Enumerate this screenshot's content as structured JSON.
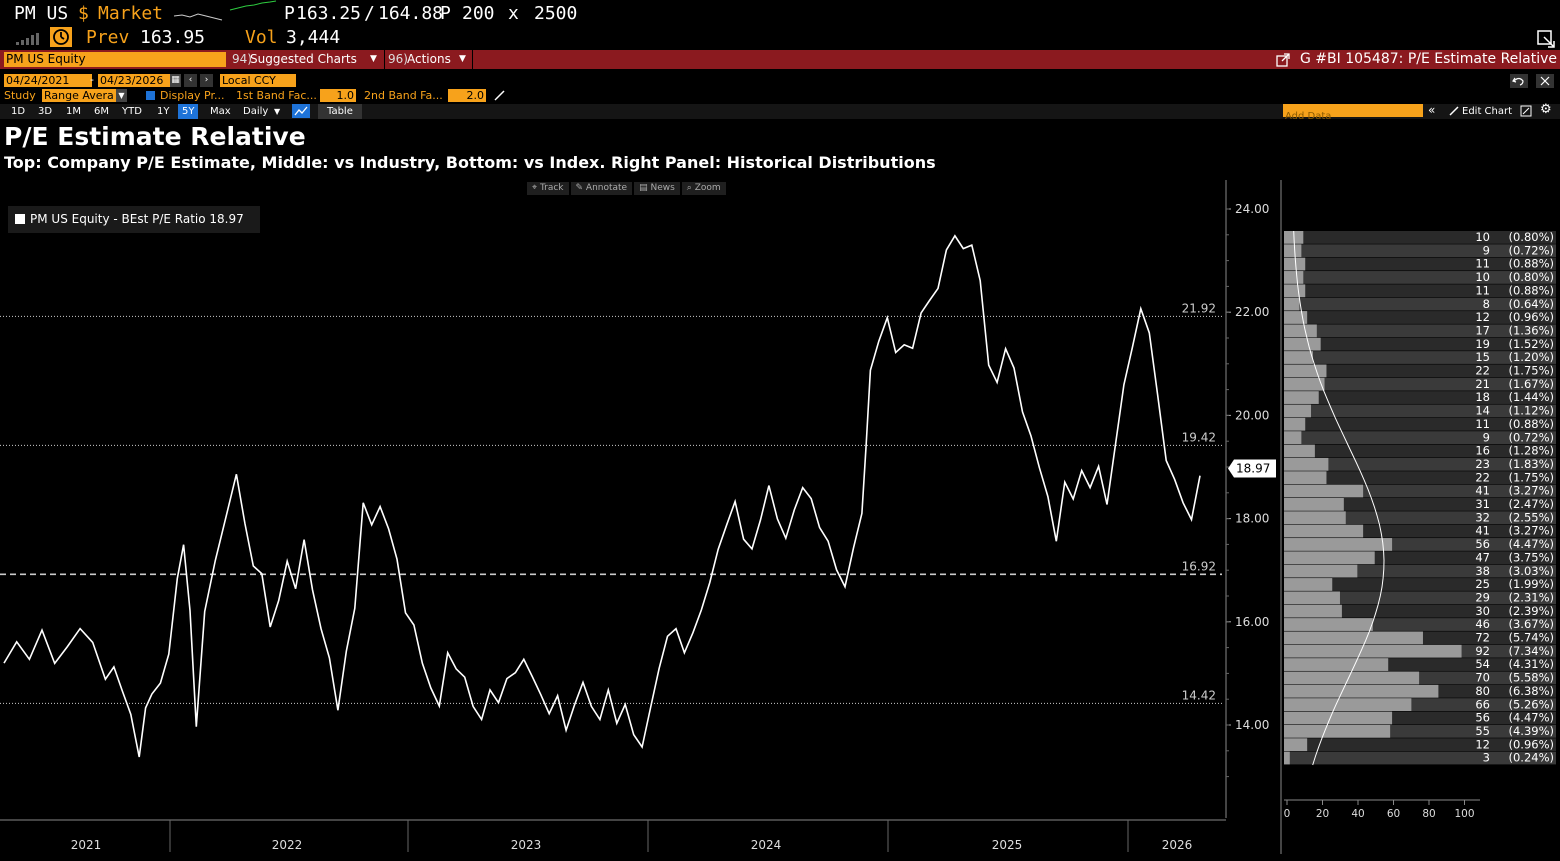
{
  "header": {
    "ticker": "PM US",
    "currency_symbol": "$",
    "market_label": "Market",
    "price_prefix": "P",
    "bid": "163.25",
    "slash": "/",
    "ask": "164.88",
    "ask_suffix": "P",
    "bid_size": "200",
    "x_label": "x",
    "ask_size": "2500",
    "prev_label": "Prev",
    "prev_value": "163.95",
    "vol_label": "Vol",
    "vol_value": "3,444"
  },
  "redbar": {
    "security": "PM US Equity",
    "suggested": "Suggested Charts",
    "actions": "Actions",
    "chart_id": "G #BI 105487: P/E Estimate Relative"
  },
  "controls": {
    "start_date": "04/24/2021",
    "dash": "-",
    "end_date": "04/23/2026",
    "currency": "Local CCY",
    "study_label": "Study",
    "study_value": "Range Avera",
    "display_label": "Display Pr...",
    "band1_label": "1st Band Fac...",
    "band1_value": "1.0",
    "band2_label": "2nd Band Fa...",
    "band2_value": "2.0",
    "ranges": [
      "1D",
      "3D",
      "1M",
      "6M",
      "YTD",
      "1Y",
      "5Y",
      "Max"
    ],
    "active_range": "5Y",
    "freq": "Daily",
    "table_label": "Table",
    "add_data_placeholder": "Add Data",
    "edit_chart": "Edit Chart"
  },
  "title": "P/E Estimate Relative",
  "subtitle": "Top: Company P/E Estimate, Middle: vs Industry, Bottom: vs Index. Right Panel: Historical Distributions",
  "tools": [
    "Track",
    "Annotate",
    "News",
    "Zoom"
  ],
  "legend_text": "PM US Equity - BEst P/E Ratio 18.97",
  "colors": {
    "amber": "#f7a21b",
    "red_bar": "#8b1a1f",
    "line": "#ffffff",
    "hist_light": "#999999",
    "hist_dark": "#3a3a3a"
  },
  "chart_data": {
    "type": "line",
    "x_labels": [
      "2021",
      "2022",
      "2023",
      "2024",
      "2025",
      "2026"
    ],
    "ylim": [
      12.8,
      24.4
    ],
    "y_ticks": [
      "14.00",
      "16.00",
      "18.00",
      "20.00",
      "22.00",
      "24.00"
    ],
    "last_value": "18.97",
    "ref_lines": [
      {
        "value": 21.92,
        "label": "21.92",
        "style": "dotted"
      },
      {
        "value": 19.42,
        "label": "19.42",
        "style": "dotted"
      },
      {
        "value": 16.92,
        "label": "16.92",
        "style": "dashed"
      },
      {
        "value": 14.42,
        "label": "14.42",
        "style": "dotted"
      }
    ],
    "series": [
      {
        "values": [
          [
            2021.3,
            15.2
          ],
          [
            2021.36,
            15.6
          ],
          [
            2021.42,
            15.3
          ],
          [
            2021.48,
            15.8
          ],
          [
            2021.54,
            15.2
          ],
          [
            2021.6,
            15.5
          ],
          [
            2021.66,
            15.9
          ],
          [
            2021.72,
            15.6
          ],
          [
            2021.78,
            14.9
          ],
          [
            2021.82,
            15.1
          ],
          [
            2021.86,
            14.7
          ],
          [
            2021.9,
            14.2
          ],
          [
            2021.94,
            13.4
          ],
          [
            2021.97,
            14.3
          ],
          [
            2022.0,
            14.6
          ],
          [
            2022.04,
            14.8
          ],
          [
            2022.08,
            15.4
          ],
          [
            2022.12,
            16.8
          ],
          [
            2022.15,
            17.5
          ],
          [
            2022.18,
            16.2
          ],
          [
            2022.21,
            14.0
          ],
          [
            2022.25,
            16.2
          ],
          [
            2022.3,
            17.2
          ],
          [
            2022.35,
            18.0
          ],
          [
            2022.4,
            18.9
          ],
          [
            2022.44,
            17.9
          ],
          [
            2022.48,
            17.1
          ],
          [
            2022.52,
            16.9
          ],
          [
            2022.56,
            15.9
          ],
          [
            2022.6,
            16.4
          ],
          [
            2022.64,
            17.2
          ],
          [
            2022.68,
            16.6
          ],
          [
            2022.72,
            17.6
          ],
          [
            2022.76,
            16.6
          ],
          [
            2022.8,
            15.9
          ],
          [
            2022.84,
            15.3
          ],
          [
            2022.88,
            14.3
          ],
          [
            2022.92,
            15.4
          ],
          [
            2022.96,
            16.3
          ],
          [
            2023.0,
            18.3
          ],
          [
            2023.04,
            17.9
          ],
          [
            2023.08,
            18.2
          ],
          [
            2023.12,
            17.8
          ],
          [
            2023.16,
            17.2
          ],
          [
            2023.2,
            16.2
          ],
          [
            2023.24,
            15.9
          ],
          [
            2023.28,
            15.2
          ],
          [
            2023.32,
            14.7
          ],
          [
            2023.36,
            14.4
          ],
          [
            2023.4,
            15.4
          ],
          [
            2023.44,
            15.1
          ],
          [
            2023.48,
            14.9
          ],
          [
            2023.52,
            14.4
          ],
          [
            2023.56,
            14.1
          ],
          [
            2023.6,
            14.7
          ],
          [
            2023.64,
            14.4
          ],
          [
            2023.68,
            14.9
          ],
          [
            2023.72,
            15.0
          ],
          [
            2023.76,
            15.3
          ],
          [
            2023.8,
            14.9
          ],
          [
            2023.84,
            14.6
          ],
          [
            2023.88,
            14.2
          ],
          [
            2023.92,
            14.6
          ],
          [
            2023.96,
            13.9
          ],
          [
            2024.0,
            14.4
          ],
          [
            2024.04,
            14.8
          ],
          [
            2024.08,
            14.4
          ],
          [
            2024.12,
            14.1
          ],
          [
            2024.16,
            14.7
          ],
          [
            2024.2,
            14.0
          ],
          [
            2024.24,
            14.4
          ],
          [
            2024.28,
            13.8
          ],
          [
            2024.32,
            13.6
          ],
          [
            2024.36,
            14.3
          ],
          [
            2024.4,
            15.1
          ],
          [
            2024.44,
            15.7
          ],
          [
            2024.48,
            15.9
          ],
          [
            2024.52,
            15.4
          ],
          [
            2024.56,
            15.8
          ],
          [
            2024.6,
            16.2
          ],
          [
            2024.64,
            16.8
          ],
          [
            2024.68,
            17.4
          ],
          [
            2024.72,
            17.9
          ],
          [
            2024.76,
            18.3
          ],
          [
            2024.8,
            17.6
          ],
          [
            2024.84,
            17.4
          ],
          [
            2024.88,
            18.0
          ],
          [
            2024.92,
            18.6
          ],
          [
            2024.96,
            18.0
          ],
          [
            2025.0,
            17.6
          ],
          [
            2025.04,
            18.2
          ],
          [
            2025.08,
            18.6
          ],
          [
            2025.12,
            18.4
          ],
          [
            2025.16,
            17.8
          ],
          [
            2025.2,
            17.6
          ],
          [
            2025.24,
            17.0
          ],
          [
            2025.28,
            16.7
          ],
          [
            2025.32,
            17.4
          ],
          [
            2025.36,
            18.1
          ],
          [
            2025.38,
            19.4
          ],
          [
            2025.4,
            20.9
          ],
          [
            2025.44,
            21.4
          ],
          [
            2025.48,
            21.9
          ],
          [
            2025.52,
            21.2
          ],
          [
            2025.56,
            21.4
          ],
          [
            2025.6,
            21.3
          ],
          [
            2025.64,
            22.0
          ],
          [
            2025.68,
            22.2
          ],
          [
            2025.72,
            22.5
          ],
          [
            2025.76,
            23.2
          ],
          [
            2025.8,
            23.5
          ],
          [
            2025.84,
            23.2
          ],
          [
            2025.88,
            23.3
          ],
          [
            2025.92,
            22.6
          ],
          [
            2025.96,
            21.0
          ],
          [
            2026.0,
            20.6
          ],
          [
            2026.04,
            21.3
          ],
          [
            2026.08,
            20.9
          ],
          [
            2026.12,
            20.1
          ],
          [
            2026.16,
            19.6
          ],
          [
            2026.2,
            19.0
          ],
          [
            2026.24,
            18.4
          ],
          [
            2026.28,
            17.6
          ],
          [
            2026.32,
            18.7
          ],
          [
            2026.36,
            18.4
          ],
          [
            2026.4,
            18.9
          ],
          [
            2026.44,
            18.6
          ],
          [
            2026.48,
            19.0
          ],
          [
            2026.52,
            18.3
          ],
          [
            2026.56,
            19.4
          ],
          [
            2026.6,
            20.6
          ],
          [
            2026.64,
            21.3
          ],
          [
            2026.68,
            22.1
          ],
          [
            2026.72,
            21.6
          ],
          [
            2026.76,
            20.4
          ],
          [
            2026.8,
            19.1
          ],
          [
            2026.84,
            18.8
          ],
          [
            2026.88,
            18.3
          ],
          [
            2026.92,
            18.0
          ],
          [
            2026.96,
            18.8
          ]
        ]
      }
    ],
    "histogram": {
      "counts": [
        "10",
        "9",
        "11",
        "10",
        "11",
        "8",
        "12",
        "17",
        "19",
        "15",
        "22",
        "21",
        "18",
        "14",
        "11",
        "9",
        "16",
        "23",
        "22",
        "41",
        "31",
        "32",
        "41",
        "56",
        "47",
        "38",
        "25",
        "29",
        "30",
        "46",
        "72",
        "92",
        "54",
        "70",
        "80",
        "66",
        "56",
        "55",
        "12",
        "3"
      ],
      "pcts": [
        "(0.80%)",
        "(0.72%)",
        "(0.88%)",
        "(0.80%)",
        "(0.88%)",
        "(0.64%)",
        "(0.96%)",
        "(1.36%)",
        "(1.52%)",
        "(1.20%)",
        "(1.75%)",
        "(1.67%)",
        "(1.44%)",
        "(1.12%)",
        "(0.88%)",
        "(0.72%)",
        "(1.28%)",
        "(1.83%)",
        "(1.75%)",
        "(3.27%)",
        "(2.47%)",
        "(2.55%)",
        "(3.27%)",
        "(4.47%)",
        "(3.75%)",
        "(3.03%)",
        "(1.99%)",
        "(2.31%)",
        "(2.39%)",
        "(3.67%)",
        "(5.74%)",
        "(7.34%)",
        "(4.31%)",
        "(5.58%)",
        "(6.38%)",
        "(5.26%)",
        "(4.47%)",
        "(4.39%)",
        "(0.96%)",
        "(0.24%)"
      ],
      "x_ticks": [
        "0",
        "20",
        "40",
        "60",
        "80",
        "100"
      ]
    }
  }
}
